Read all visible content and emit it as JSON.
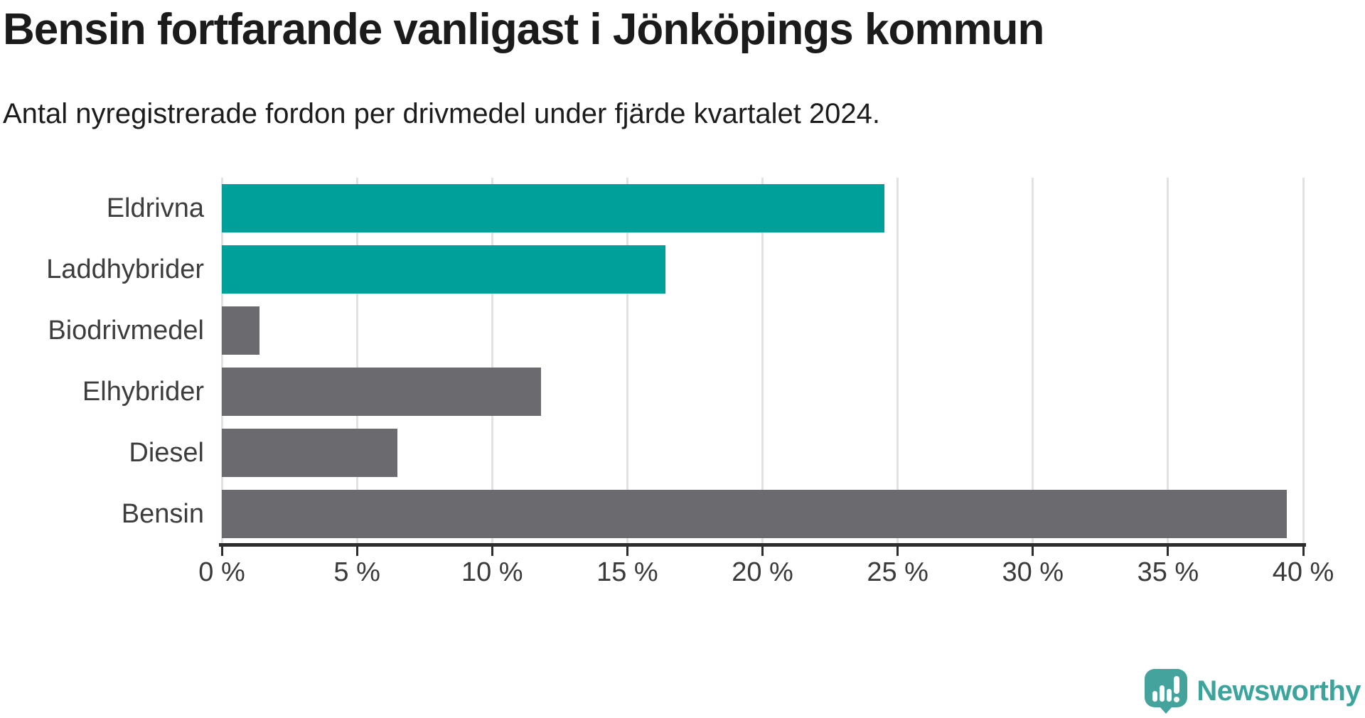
{
  "header": {
    "title": "Bensin fortfarande vanligast i Jönköpings kommun",
    "subtitle": "Antal nyregistrerade fordon per drivmedel under fjärde kvartalet 2024."
  },
  "chart_data": {
    "type": "bar",
    "orientation": "horizontal",
    "title": "Bensin fortfarande vanligast i Jönköpings kommun",
    "subtitle": "Antal nyregistrerade fordon per drivmedel under fjärde kvartalet 2024.",
    "categories": [
      "Eldrivna",
      "Laddhybrider",
      "Biodrivmedel",
      "Elhybrider",
      "Diesel",
      "Bensin"
    ],
    "values": [
      24.5,
      16.4,
      1.4,
      11.8,
      6.5,
      39.4
    ],
    "unit": "%",
    "xlim": [
      0,
      40
    ],
    "x_tick_labels": [
      "0 %",
      "5 %",
      "10 %",
      "15 %",
      "20 %",
      "25 %",
      "30 %",
      "35 %",
      "40 %"
    ],
    "x_tick_values": [
      0,
      5,
      10,
      15,
      20,
      25,
      30,
      35,
      40
    ],
    "grid": true,
    "legend": false,
    "bar_colors": [
      "#00a09a",
      "#00a09a",
      "#6b6a6e",
      "#6b6a6e",
      "#6b6a6e",
      "#6b6a6e"
    ]
  },
  "colors": {
    "accent_teal": "#00a09a",
    "neutral_gray": "#6b6a6e",
    "gridline": "#e2e2e2",
    "axis": "#2d2d2d",
    "text_dark": "#1b1b1b",
    "label_gray": "#3d3d3d",
    "brand_teal": "#3ba49c",
    "logo_icon_teal": "#44a49d"
  },
  "branding": {
    "logo_text": "Newsworthy",
    "logo_icon": "newsworthy-speech-bubble-chart-icon"
  }
}
